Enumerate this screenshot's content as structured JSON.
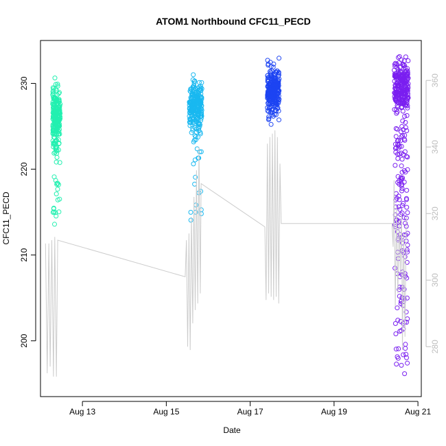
{
  "chart_data": {
    "type": "scatter",
    "title": "ATOM1 Northbound CFC11_PECD",
    "xlabel": "Date",
    "ylabel": "CFC11_PECD",
    "x_unit": "date (August, days)",
    "xlim": [
      12.0,
      21.08
    ],
    "ylim": [
      193.5,
      235.0
    ],
    "right_ylim": [
      265.0,
      372.0
    ],
    "x_ticks": [
      {
        "value": 13,
        "label": "Aug 13"
      },
      {
        "value": 15,
        "label": "Aug 15"
      },
      {
        "value": 17,
        "label": "Aug 17"
      },
      {
        "value": 19,
        "label": "Aug 19"
      },
      {
        "value": 21,
        "label": "Aug 21"
      }
    ],
    "y_ticks": [
      200,
      210,
      220,
      230
    ],
    "right_y_ticks": [
      280,
      300,
      320,
      340,
      360
    ],
    "grid": false,
    "legend": "none",
    "series": [
      {
        "color": "#22f0b0",
        "center_x": 12.38,
        "x_spread": 0.09,
        "core": {
          "y_mean": 226.5,
          "y_sd": 1.6,
          "count": 200
        },
        "tail": {
          "y_min": 212.0,
          "y_max": 225.0,
          "count": 40
        }
      },
      {
        "color": "#19b8f0",
        "center_x": 15.7,
        "x_spread": 0.15,
        "core": {
          "y_mean": 227.5,
          "y_sd": 1.4,
          "count": 230
        },
        "tail": {
          "y_min": 213.5,
          "y_max": 225.5,
          "count": 25
        }
      },
      {
        "color": "#1d44f2",
        "center_x": 17.55,
        "x_spread": 0.14,
        "core": {
          "y_mean": 229.2,
          "y_sd": 1.3,
          "count": 260
        },
        "tail": {
          "y_min": 225.5,
          "y_max": 227.0,
          "count": 3
        }
      },
      {
        "color": "#7a1ff0",
        "center_x": 20.6,
        "x_spread": 0.17,
        "core": {
          "y_mean": 229.5,
          "y_sd": 1.5,
          "count": 240
        },
        "tail": {
          "y_min": 196.0,
          "y_max": 225.0,
          "count": 150
        }
      }
    ],
    "secondary_line": {
      "color": "#cccccc",
      "points": [
        [
          12.12,
          311
        ],
        [
          12.16,
          272
        ],
        [
          12.2,
          311
        ],
        [
          12.23,
          274
        ],
        [
          12.27,
          312
        ],
        [
          12.31,
          271
        ],
        [
          12.34,
          313
        ],
        [
          12.38,
          271
        ],
        [
          12.41,
          312
        ],
        [
          15.45,
          301
        ],
        [
          15.48,
          312
        ],
        [
          15.51,
          280
        ],
        [
          15.54,
          314
        ],
        [
          15.57,
          279
        ],
        [
          15.6,
          319
        ],
        [
          15.63,
          287
        ],
        [
          15.66,
          325
        ],
        [
          15.69,
          291
        ],
        [
          15.72,
          333
        ],
        [
          15.75,
          293
        ],
        [
          15.78,
          340
        ],
        [
          15.81,
          296
        ],
        [
          15.83,
          329
        ],
        [
          17.35,
          316
        ],
        [
          17.38,
          294
        ],
        [
          17.41,
          341
        ],
        [
          17.44,
          296
        ],
        [
          17.47,
          343
        ],
        [
          17.5,
          295
        ],
        [
          17.53,
          344
        ],
        [
          17.56,
          294
        ],
        [
          17.59,
          345
        ],
        [
          17.62,
          295
        ],
        [
          17.65,
          343
        ],
        [
          17.68,
          293
        ],
        [
          17.71,
          335
        ],
        [
          17.74,
          317
        ],
        [
          20.38,
          317
        ],
        [
          20.41,
          310
        ],
        [
          20.43,
          330
        ],
        [
          20.46,
          292
        ],
        [
          20.49,
          322
        ],
        [
          20.52,
          296
        ],
        [
          20.55,
          318
        ],
        [
          20.58,
          302
        ],
        [
          20.61,
          320
        ],
        [
          20.63,
          279
        ],
        [
          20.66,
          314
        ],
        [
          20.69,
          283
        ],
        [
          20.72,
          319
        ]
      ]
    }
  }
}
